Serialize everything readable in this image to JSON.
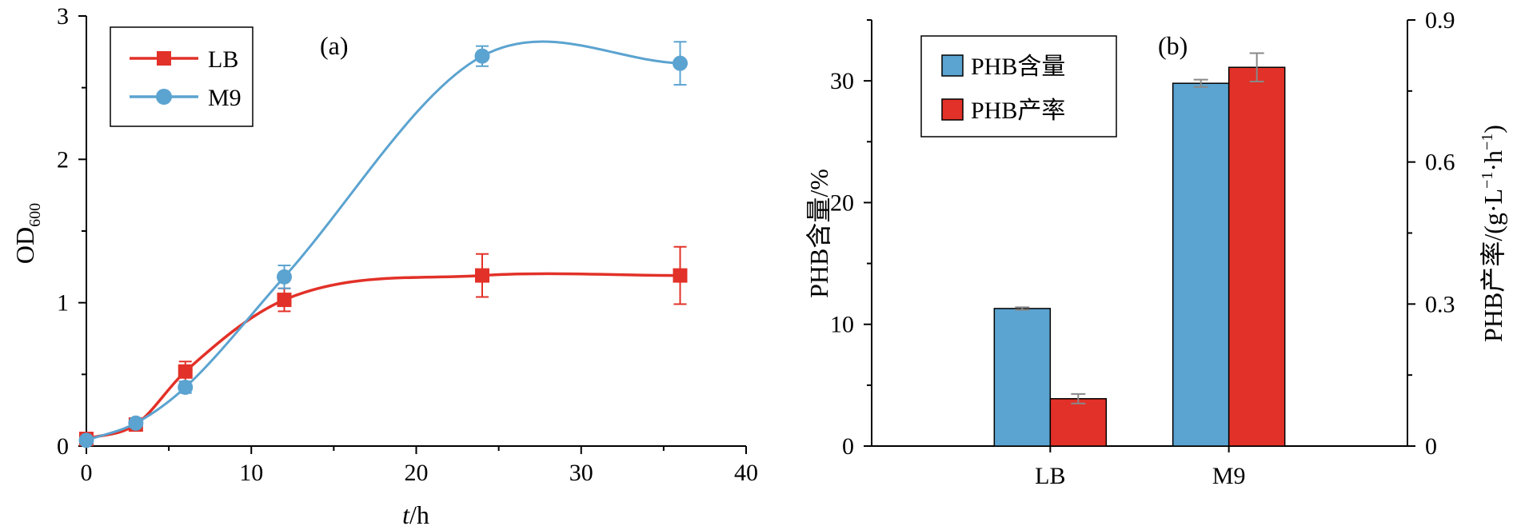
{
  "chart_data": [
    {
      "type": "line",
      "panel_label": "(a)",
      "xlabel": {
        "italic": "t",
        "rest": "/h"
      },
      "ylabel": {
        "main": "OD",
        "sub": "600"
      },
      "xlim": [
        0,
        40
      ],
      "ylim": [
        0,
        3
      ],
      "xticks": [
        0,
        10,
        20,
        30,
        40
      ],
      "yticks": [
        0,
        1,
        2,
        3
      ],
      "legend_position": "top-left",
      "series": [
        {
          "name": "LB",
          "color": "#e23128",
          "marker": "square",
          "x": [
            0,
            3,
            6,
            12,
            24,
            36
          ],
          "y": [
            0.05,
            0.15,
            0.52,
            1.02,
            1.19,
            1.19
          ],
          "err": [
            0.02,
            0.03,
            0.07,
            0.08,
            0.15,
            0.2
          ]
        },
        {
          "name": "M9",
          "color": "#5ba3d0",
          "marker": "circle",
          "x": [
            0,
            3,
            6,
            12,
            24,
            36
          ],
          "y": [
            0.04,
            0.16,
            0.41,
            1.18,
            2.72,
            2.67
          ],
          "err": [
            0.02,
            0.02,
            0.04,
            0.08,
            0.07,
            0.15
          ]
        }
      ]
    },
    {
      "type": "bar",
      "panel_label": "(b)",
      "categories": [
        "LB",
        "M9"
      ],
      "ylabel_left": "PHB含量/%",
      "ylabel_right": {
        "main": "PHB产率/(g·L",
        "sup1": "−1",
        "mid": "·h",
        "sup2": "−1",
        "end": ")"
      },
      "ylim_left": [
        0,
        35
      ],
      "yticks_left": [
        0,
        10,
        20,
        30
      ],
      "ylim_right": [
        0,
        0.9
      ],
      "yticks_right": [
        "0",
        "0.3",
        "0.6",
        "0.9"
      ],
      "legend_position": "top-left",
      "series": [
        {
          "name": "PHB含量",
          "color": "#5ba3d0",
          "axis": "left",
          "values": [
            11.3,
            29.8
          ],
          "err": [
            0.1,
            0.3
          ]
        },
        {
          "name": "PHB产率",
          "color": "#e23128",
          "axis": "right",
          "values": [
            0.1,
            0.8
          ],
          "err": [
            0.01,
            0.03
          ]
        }
      ]
    }
  ]
}
